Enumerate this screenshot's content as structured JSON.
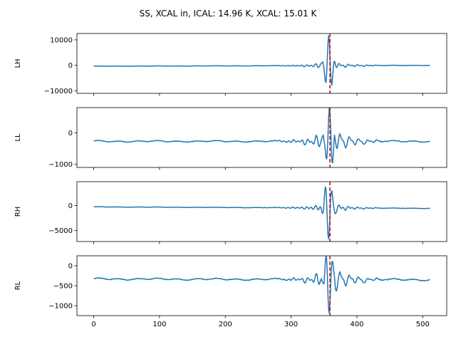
{
  "chart_data": {
    "type": "line",
    "title": "SS, XCAL in, ICAL: 14.96 K, XCAL: 15.01 K",
    "x_range": [
      0,
      511
    ],
    "xlim": [
      -25.5,
      536.5
    ],
    "xticks": [
      0,
      100,
      200,
      300,
      400,
      500
    ],
    "x_tick_labels": [
      "0",
      "100",
      "200",
      "300",
      "400",
      "500"
    ],
    "marker_x": 359,
    "colors": {
      "line": "#1f77b4",
      "marker": "#cc0000",
      "axes": "#000000"
    },
    "panels": [
      {
        "ylabel": "LH",
        "ylim": [
          -11000,
          12500
        ],
        "yticks": [
          10000,
          0,
          -10000
        ],
        "y_tick_labels": [
          "10000",
          "0",
          "−10000"
        ],
        "baseline_start": -350,
        "baseline_end": 0,
        "wiggle_amplitude": 60,
        "burst": {
          "center": 357,
          "amplitude": 11500,
          "sign": 1,
          "wobble": 900,
          "tail": 700
        }
      },
      {
        "ylabel": "LL",
        "ylim": [
          -1100,
          800
        ],
        "yticks": [
          0,
          -1000
        ],
        "y_tick_labels": [
          "0",
          "−1000"
        ],
        "baseline_start": -270,
        "baseline_end": -270,
        "wiggle_amplitude": 25,
        "burst": {
          "center": 358,
          "amplitude": 1000,
          "sign": 1,
          "wobble": 150,
          "tail": 260
        }
      },
      {
        "ylabel": "RH",
        "ylim": [
          -7200,
          4800
        ],
        "yticks": [
          0,
          -5000
        ],
        "y_tick_labels": [
          "0",
          "−5000"
        ],
        "baseline_start": -250,
        "baseline_end": -550,
        "wiggle_amplitude": 40,
        "burst": {
          "center": 357,
          "amplitude": 6500,
          "sign": -1,
          "wobble": 600,
          "tail": 400
        }
      },
      {
        "ylabel": "RL",
        "ylim": [
          -1250,
          250
        ],
        "yticks": [
          0,
          -500,
          -1000
        ],
        "y_tick_labels": [
          "0",
          "−500",
          "−1000"
        ],
        "baseline_start": -330,
        "baseline_end": -350,
        "wiggle_amplitude": 25,
        "burst": {
          "center": 358,
          "amplitude": 900,
          "sign": -1,
          "wobble": 120,
          "tail": 200
        }
      }
    ]
  }
}
